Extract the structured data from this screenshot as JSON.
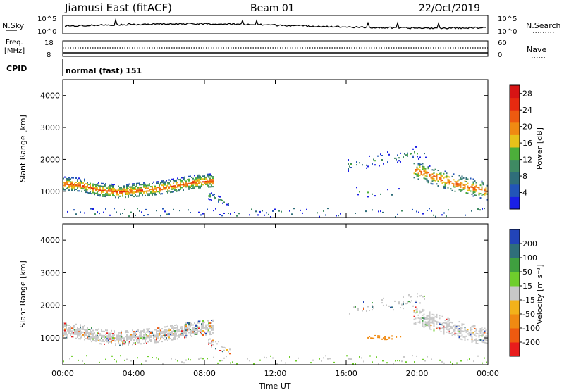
{
  "header": {
    "title": "Jiamusi East (fitACF)",
    "beam": "Beam 01",
    "date": "22/Oct/2019"
  },
  "panels": {
    "nsky": {
      "label": "N.Sky",
      "tick_top": "10^5",
      "tick_bottom": "10^0",
      "right_label": "N.Search",
      "right_tick_top": "10^5",
      "right_tick_bottom": "10^0"
    },
    "freq": {
      "label_line1": "Freq.",
      "label_line2": "[MHz]",
      "tick_top": "18",
      "tick_bottom": "8",
      "right_label": "Nave",
      "right_tick_top": "60",
      "right_tick_bottom": "0"
    },
    "cpid": {
      "label": "CPID",
      "text": "normal (fast) 151"
    }
  },
  "colors": {
    "nsky_line": "#000000",
    "power_scale": [
      "#1a1fe6",
      "#2255b8",
      "#2f6e7a",
      "#3f8a63",
      "#4caf3a",
      "#e8c21a",
      "#f08a12",
      "#ee5a10",
      "#e62a10",
      "#d71414"
    ],
    "velocity_scale": [
      "#e81c1c",
      "#ee5a10",
      "#f08a12",
      "#f2b21a",
      "#c8c8c8",
      "#6fce2c",
      "#3f9f3f",
      "#2f6e7a",
      "#2244b8"
    ]
  },
  "chart_data": [
    {
      "type": "heatmap",
      "name": "power",
      "ylabel": "Slant Range [km]",
      "xlim_hours": [
        0,
        24
      ],
      "ylim": [
        180,
        4500
      ],
      "yticks": [
        "1000",
        "2000",
        "3000",
        "4000"
      ],
      "xticks": [
        "00:00",
        "04:00",
        "08:00",
        "12:00",
        "16:00",
        "20:00",
        "00:00"
      ],
      "colorbar": {
        "label": "Power [dB]",
        "ticks": [
          "4",
          "8",
          "12",
          "16",
          "20",
          "24",
          "28"
        ],
        "range": [
          0,
          30
        ]
      },
      "features": [
        {
          "t0": 0.0,
          "t1": 8.5,
          "center_km": [
            1250,
            1200,
            1050,
            1000,
            1050,
            1100,
            1200,
            1300,
            1350
          ],
          "half_width_km": 220,
          "density": 0.85
        },
        {
          "t0": 8.2,
          "t1": 9.4,
          "center_km": [
            900,
            750,
            650
          ],
          "half_width_km": 150,
          "density": 0.35
        },
        {
          "t0": 16.4,
          "t1": 19.0,
          "center_km": [
            1000,
            950,
            1000
          ],
          "half_width_km": 150,
          "density": 0.08
        },
        {
          "t0": 19.8,
          "t1": 24.0,
          "center_km": [
            1700,
            1500,
            1300,
            1150,
            1000
          ],
          "half_width_km": 280,
          "density": 0.55
        },
        {
          "t0": 16.0,
          "t1": 20.6,
          "center_km": [
            1800,
            2000,
            2100,
            2300
          ],
          "half_width_km": 200,
          "density": 0.15
        }
      ]
    },
    {
      "type": "heatmap",
      "name": "velocity",
      "ylabel": "Slant Range [km]",
      "xlabel": "Time UT",
      "xlim_hours": [
        0,
        24
      ],
      "ylim": [
        180,
        4500
      ],
      "yticks": [
        "1000",
        "2000",
        "3000",
        "4000"
      ],
      "xticks": [
        "00:00",
        "04:00",
        "08:00",
        "12:00",
        "16:00",
        "20:00",
        "00:00"
      ],
      "colorbar": {
        "label": "Velocity [m s⁻¹]",
        "ticks": [
          "200",
          "100",
          "50",
          "15",
          "-15",
          "-50",
          "-100",
          "-200"
        ],
        "range": [
          -250,
          250
        ]
      },
      "features": [
        {
          "t0": 0.0,
          "t1": 8.5,
          "center_km": [
            1250,
            1200,
            1050,
            1000,
            1050,
            1100,
            1200,
            1300,
            1350
          ],
          "half_width_km": 220,
          "density": 0.85
        },
        {
          "t0": 8.2,
          "t1": 9.4,
          "center_km": [
            900,
            750,
            650
          ],
          "half_width_km": 150,
          "density": 0.35
        },
        {
          "t0": 17.2,
          "t1": 19.2,
          "center_km": [
            1050,
            1000,
            1050
          ],
          "half_width_km": 60,
          "density": 0.4
        },
        {
          "t0": 19.8,
          "t1": 24.0,
          "center_km": [
            1700,
            1500,
            1300,
            1150,
            1000
          ],
          "half_width_km": 280,
          "density": 0.55
        },
        {
          "t0": 16.0,
          "t1": 20.6,
          "center_km": [
            1800,
            2000,
            2100,
            2300
          ],
          "half_width_km": 200,
          "density": 0.15
        }
      ]
    }
  ]
}
